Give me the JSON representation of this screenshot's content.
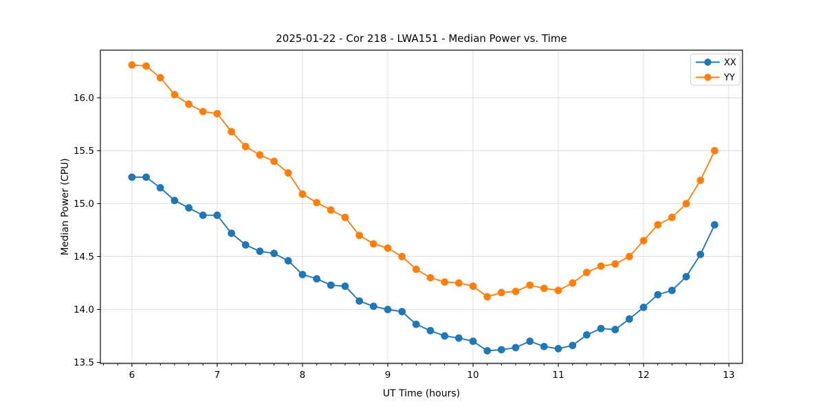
{
  "figure": {
    "background": "#ffffff"
  },
  "chart_data": {
    "type": "line",
    "title": "2025-01-22 - Cor 218 - LWA151 - Median Power vs. Time",
    "xlabel": "UT Time (hours)",
    "ylabel": "Median Power (CPU)",
    "xlim": [
      5.63,
      13.16
    ],
    "ylim": [
      13.49,
      16.45
    ],
    "x_ticks": [
      6,
      7,
      8,
      9,
      10,
      11,
      12,
      13
    ],
    "x_tick_labels": [
      "6",
      "7",
      "8",
      "9",
      "10",
      "11",
      "12",
      "13"
    ],
    "y_ticks": [
      13.5,
      14.0,
      14.5,
      15.0,
      15.5,
      16.0
    ],
    "y_tick_labels": [
      "13.5",
      "14.0",
      "14.5",
      "15.0",
      "15.5",
      "16.0"
    ],
    "x_minor_step": 0.1666667,
    "grid": true,
    "grid_color": "#dcdcdc",
    "spine_color": "#000000",
    "legend_position": "upper right",
    "x": [
      6.0,
      6.167,
      6.333,
      6.5,
      6.667,
      6.833,
      7.0,
      7.167,
      7.333,
      7.5,
      7.667,
      7.833,
      8.0,
      8.167,
      8.333,
      8.5,
      8.667,
      8.833,
      9.0,
      9.167,
      9.333,
      9.5,
      9.667,
      9.833,
      10.0,
      10.167,
      10.333,
      10.5,
      10.667,
      10.833,
      11.0,
      11.167,
      11.333,
      11.5,
      11.667,
      11.833,
      12.0,
      12.167,
      12.333,
      12.5,
      12.667,
      12.833
    ],
    "series": [
      {
        "name": "XX",
        "color": "#1f77b4",
        "values": [
          15.25,
          15.25,
          15.15,
          15.03,
          14.96,
          14.89,
          14.89,
          14.72,
          14.61,
          14.55,
          14.53,
          14.46,
          14.33,
          14.29,
          14.23,
          14.22,
          14.08,
          14.03,
          14.0,
          13.98,
          13.86,
          13.8,
          13.75,
          13.73,
          13.7,
          13.61,
          13.62,
          13.64,
          13.7,
          13.65,
          13.63,
          13.66,
          13.76,
          13.82,
          13.81,
          13.91,
          14.02,
          14.14,
          14.18,
          14.31,
          14.52,
          14.8
        ]
      },
      {
        "name": "YY",
        "color": "#ff7f0e",
        "values": [
          16.31,
          16.3,
          16.19,
          16.03,
          15.94,
          15.87,
          15.85,
          15.68,
          15.54,
          15.46,
          15.4,
          15.29,
          15.09,
          15.01,
          14.94,
          14.87,
          14.7,
          14.62,
          14.58,
          14.5,
          14.38,
          14.3,
          14.26,
          14.25,
          14.22,
          14.12,
          14.16,
          14.17,
          14.23,
          14.2,
          14.18,
          14.25,
          14.35,
          14.41,
          14.43,
          14.5,
          14.65,
          14.8,
          14.87,
          15.0,
          15.22,
          15.5
        ]
      }
    ]
  }
}
